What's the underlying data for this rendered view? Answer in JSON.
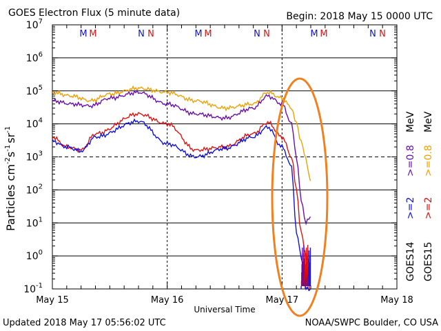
{
  "header": {
    "title": "GOES Electron Flux (5 minute data)",
    "begin": "Begin: 2018 May 15 0000 UTC"
  },
  "footer": {
    "updated": "Updated 2018 May 17 05:56:02 UTC",
    "source": "NOAA/SWPC Boulder, CO USA"
  },
  "y_axis": {
    "label": "Particles cm",
    "label_sup1": "-2",
    "label_mid1": "s",
    "label_sup2": "-1",
    "label_mid2": "sr",
    "label_sup3": "-1",
    "ticks": [
      {
        "value": 10000000.0,
        "base": "10",
        "exp": "7"
      },
      {
        "value": 1000000.0,
        "base": "10",
        "exp": "6"
      },
      {
        "value": 100000.0,
        "base": "10",
        "exp": "5"
      },
      {
        "value": 10000.0,
        "base": "10",
        "exp": "4"
      },
      {
        "value": 1000.0,
        "base": "10",
        "exp": "3"
      },
      {
        "value": 100.0,
        "base": "10",
        "exp": "2"
      },
      {
        "value": 10.0,
        "base": "10",
        "exp": "1"
      },
      {
        "value": 1.0,
        "base": "10",
        "exp": "0"
      },
      {
        "value": 0.1,
        "base": "10",
        "exp": "-1"
      }
    ]
  },
  "x_axis": {
    "label": "Universal Time",
    "ticks": [
      "May 15",
      "May 16",
      "May 17",
      "May 18"
    ]
  },
  "markers": [
    "M",
    "M",
    "N",
    "N",
    "M",
    "M",
    "N",
    "N",
    "M",
    "M",
    "N",
    "N"
  ],
  "legend": {
    "goes14": "GOES14",
    "goes15": "GOES15",
    "ge2": ">=2",
    "ge08": ">=0.8",
    "unit": "MeV"
  },
  "colors": {
    "goes14_ge2": "#1010e0",
    "goes15_ge2": "#e01010",
    "goes14_ge08": "#6a0dad",
    "goes15_ge08": "#f0a000",
    "annotation": "#f08020"
  },
  "chart_data": {
    "type": "line",
    "title": "GOES Electron Flux (5 minute data)",
    "xlabel": "Universal Time",
    "ylabel": "Particles cm-2 s-1 sr-1",
    "y_scale": "log",
    "ylim": [
      0.1,
      10000000
    ],
    "xlim": [
      "2018-05-15 00:00",
      "2018-05-18 00:00"
    ],
    "threshold_line": 1000,
    "series": [
      {
        "name": "GOES15 >=0.8 MeV",
        "color": "#f0a000",
        "x": [
          "2018-05-15 00:00",
          "2018-05-15 04:00",
          "2018-05-15 08:00",
          "2018-05-15 12:00",
          "2018-05-15 18:00",
          "2018-05-16 00:00",
          "2018-05-16 06:00",
          "2018-05-16 12:00",
          "2018-05-16 18:00",
          "2018-05-16 21:00",
          "2018-05-17 00:00",
          "2018-05-17 02:00",
          "2018-05-17 03:00",
          "2018-05-17 04:00",
          "2018-05-17 05:00",
          "2018-05-17 05:55"
        ],
        "values": [
          90000,
          70000,
          50000,
          80000,
          120000,
          90000,
          50000,
          30000,
          40000,
          90000,
          60000,
          30000,
          10000,
          3000,
          800,
          200
        ]
      },
      {
        "name": "GOES14 >=0.8 MeV",
        "color": "#6a0dad",
        "x": [
          "2018-05-15 00:00",
          "2018-05-15 04:00",
          "2018-05-15 08:00",
          "2018-05-15 12:00",
          "2018-05-15 18:00",
          "2018-05-16 00:00",
          "2018-05-16 06:00",
          "2018-05-16 12:00",
          "2018-05-16 18:00",
          "2018-05-16 21:00",
          "2018-05-17 00:00",
          "2018-05-17 02:00",
          "2018-05-17 03:00",
          "2018-05-17 04:00",
          "2018-05-17 05:00",
          "2018-05-17 05:55"
        ],
        "values": [
          50000,
          40000,
          35000,
          60000,
          90000,
          40000,
          20000,
          15000,
          30000,
          70000,
          40000,
          10000,
          1000,
          50,
          10,
          15
        ]
      },
      {
        "name": "GOES15 >=2 MeV",
        "color": "#e01010",
        "x": [
          "2018-05-15 00:00",
          "2018-05-15 03:00",
          "2018-05-15 06:00",
          "2018-05-15 09:00",
          "2018-05-15 18:00",
          "2018-05-16 00:00",
          "2018-05-16 06:00",
          "2018-05-16 12:00",
          "2018-05-16 18:00",
          "2018-05-16 21:00",
          "2018-05-17 00:00",
          "2018-05-17 02:00",
          "2018-05-17 03:00",
          "2018-05-17 04:00",
          "2018-05-17 05:00",
          "2018-05-17 05:55"
        ],
        "values": [
          4000,
          2000,
          1600,
          5000,
          20000,
          10000,
          1600,
          2000,
          5000,
          11000,
          4000,
          1000,
          100,
          5,
          1,
          0.5
        ]
      },
      {
        "name": "GOES14 >=2 MeV",
        "color": "#1010e0",
        "x": [
          "2018-05-15 00:00",
          "2018-05-15 03:00",
          "2018-05-15 06:00",
          "2018-05-15 09:00",
          "2018-05-15 18:00",
          "2018-05-16 00:00",
          "2018-05-16 06:00",
          "2018-05-16 12:00",
          "2018-05-16 18:00",
          "2018-05-16 21:00",
          "2018-05-17 00:00",
          "2018-05-17 02:00",
          "2018-05-17 03:00",
          "2018-05-17 04:00",
          "2018-05-17 05:00",
          "2018-05-17 05:55"
        ],
        "values": [
          3000,
          2000,
          1500,
          4000,
          12000,
          2500,
          1000,
          1800,
          4000,
          8000,
          2000,
          500,
          5,
          1,
          0.1,
          0.1
        ]
      }
    ]
  }
}
